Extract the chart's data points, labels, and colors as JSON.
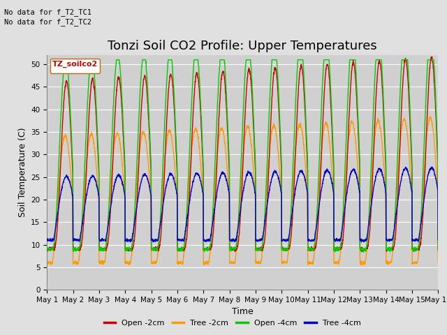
{
  "title": "Tonzi Soil CO2 Profile: Upper Temperatures",
  "ylabel": "Soil Temperature (C)",
  "xlabel": "Time",
  "annotation_lines": [
    "No data for f_T2_TC1",
    "No data for f_T2_TC2"
  ],
  "legend_label": "TZ_soilco2",
  "legend_entries": [
    "Open -2cm",
    "Tree -2cm",
    "Open -4cm",
    "Tree -4cm"
  ],
  "legend_colors": [
    "#cc0000",
    "#ff9900",
    "#00cc00",
    "#0000cc"
  ],
  "ylim": [
    0,
    52
  ],
  "yticks": [
    0,
    5,
    10,
    15,
    20,
    25,
    30,
    35,
    40,
    45,
    50
  ],
  "num_days": 15,
  "bg_color": "#e0e0e0",
  "plot_bg_color": "#d0d0d0",
  "grid_color": "#ffffff",
  "title_fontsize": 13,
  "label_fontsize": 9,
  "tick_fontsize": 7.5
}
